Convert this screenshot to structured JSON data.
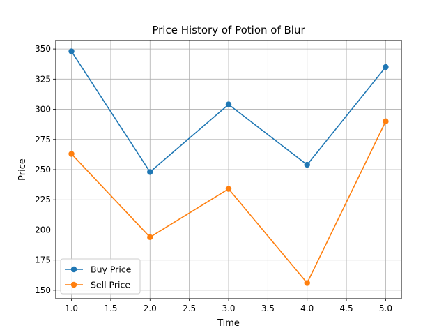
{
  "chart_data": {
    "type": "line",
    "title": "Price History of Potion of Blur",
    "xlabel": "Time",
    "ylabel": "Price",
    "x": [
      1,
      2,
      3,
      4,
      5
    ],
    "xlim": [
      0.8,
      5.2
    ],
    "ylim": [
      143,
      357
    ],
    "xticks": [
      "1.0",
      "1.5",
      "2.0",
      "2.5",
      "3.0",
      "3.5",
      "4.0",
      "4.5",
      "5.0"
    ],
    "yticks": [
      "150",
      "175",
      "200",
      "225",
      "250",
      "275",
      "300",
      "325",
      "350"
    ],
    "grid": true,
    "legend_position": "lower-left",
    "series": [
      {
        "name": "Buy Price",
        "color": "#1f77b4",
        "values": [
          348,
          248,
          304,
          254,
          335
        ]
      },
      {
        "name": "Sell Price",
        "color": "#ff7f0e",
        "values": [
          263,
          194,
          234,
          156,
          290
        ]
      }
    ]
  }
}
